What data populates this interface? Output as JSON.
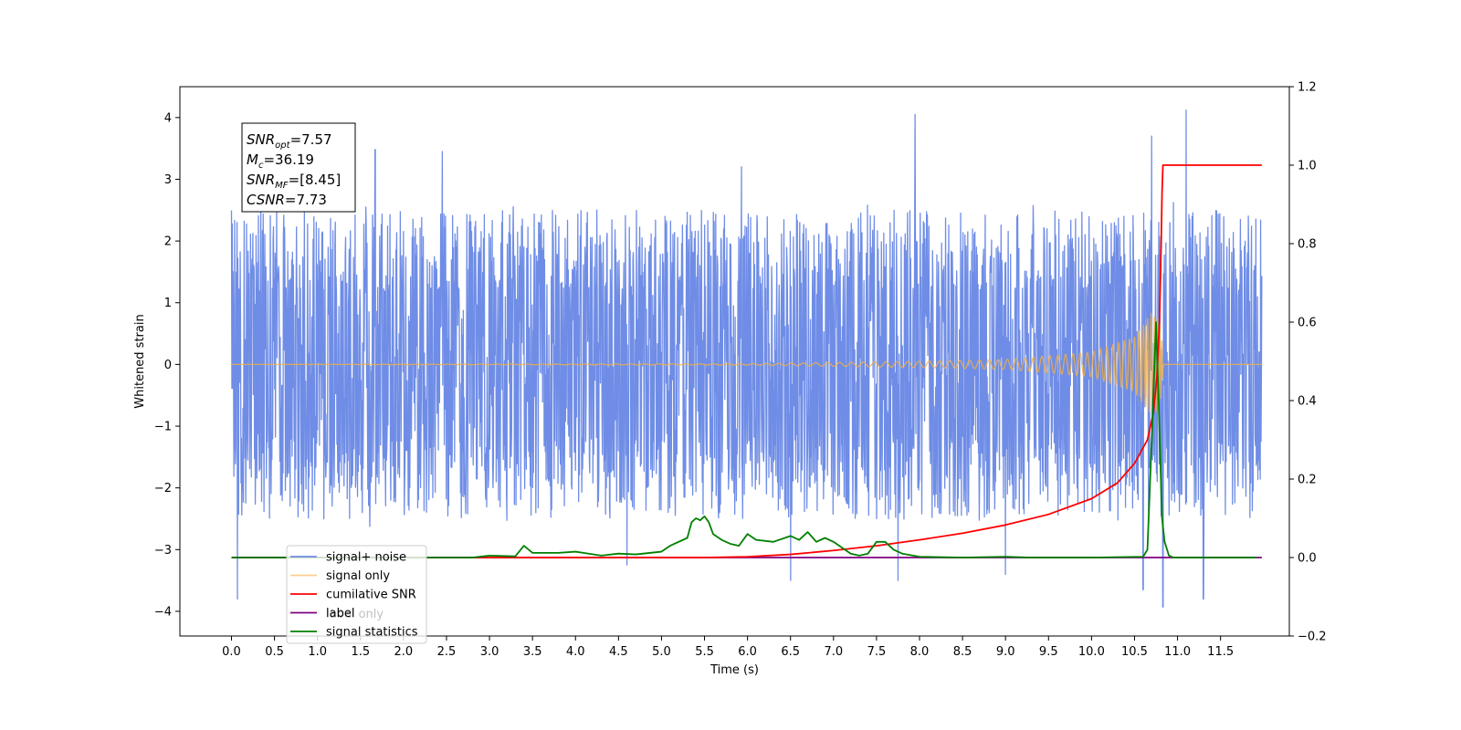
{
  "chart_data": {
    "type": "line",
    "xlabel": "Time (s)",
    "ylabel": "Whitened strain",
    "xlim": [
      -0.6,
      12.3
    ],
    "ylim": [
      -4.4,
      4.5
    ],
    "y2lim": [
      -0.2,
      1.2
    ],
    "x_ticks": [
      0.0,
      0.5,
      1.0,
      1.5,
      2.0,
      2.5,
      3.0,
      3.5,
      4.0,
      4.5,
      5.0,
      5.5,
      6.0,
      6.5,
      7.0,
      7.5,
      8.0,
      8.5,
      9.0,
      9.5,
      10.0,
      10.5,
      11.0,
      11.5
    ],
    "x_tick_labels": [
      "0.0",
      "0.5",
      "1.0",
      "1.5",
      "2.0",
      "2.5",
      "3.0",
      "3.5",
      "4.0",
      "4.5",
      "5.0",
      "5.5",
      "6.0",
      "6.5",
      "7.0",
      "7.5",
      "8.0",
      "8.5",
      "9.0",
      "9.5",
      "10.0",
      "10.5",
      "11.0",
      "11.5"
    ],
    "y_ticks": [
      -4,
      -3,
      -2,
      -1,
      0,
      1,
      2,
      3,
      4
    ],
    "y_tick_labels": [
      "−4",
      "−3",
      "−2",
      "−1",
      "0",
      "1",
      "2",
      "3",
      "4"
    ],
    "y2_ticks": [
      -0.2,
      0.0,
      0.2,
      0.4,
      0.6,
      0.8,
      1.0,
      1.2
    ],
    "y2_tick_labels": [
      "−0.2",
      "0.0",
      "0.2",
      "0.4",
      "0.6",
      "0.8",
      "1.0",
      "1.2"
    ],
    "grid": false,
    "legend_position": "lower-left",
    "colors": {
      "signal_noise": "#6f8de6",
      "signal_only": "#f5b041",
      "cumulative_snr": "#ff0000",
      "label": "#800080",
      "signal_statistics": "#008000"
    },
    "legend": [
      "signal+ noise",
      "signal only",
      "cumilative SNR",
      "label",
      "signal statistics"
    ],
    "hidden_legend_text": "label only",
    "annotation": [
      {
        "base": "SNR",
        "sub": "opt",
        "rest": "=7.57"
      },
      {
        "base": "M",
        "sub": "c",
        "rest": "=36.19"
      },
      {
        "base": "SNR",
        "sub": "MF",
        "rest": "=[8.45]"
      },
      {
        "base": "CSNR",
        "sub": "",
        "rest": "=7.73"
      }
    ],
    "series": [
      {
        "name": "signal+ noise",
        "axis": "left",
        "description": "whitened noise, approximately -2.6 to 2.6 with spikes to about ±4",
        "x_range": [
          0.0,
          11.98
        ],
        "spikes": [
          [
            0.07,
            -3.8
          ],
          [
            1.67,
            3.48
          ],
          [
            2.45,
            3.45
          ],
          [
            4.6,
            -3.25
          ],
          [
            5.93,
            3.2
          ],
          [
            6.5,
            -3.5
          ],
          [
            7.75,
            -3.5
          ],
          [
            7.95,
            4.05
          ],
          [
            9.0,
            -3.4
          ],
          [
            10.6,
            -3.65
          ],
          [
            10.7,
            3.7
          ],
          [
            10.83,
            -3.93
          ],
          [
            11.1,
            4.12
          ],
          [
            11.3,
            -3.8
          ]
        ]
      },
      {
        "name": "signal only",
        "axis": "left",
        "description": "chirp waveform, amplitude increasing until merger near t = 10.8 s",
        "x_range": [
          0.0,
          11.98
        ],
        "envelope": [
          [
            0.0,
            0.0
          ],
          [
            6.0,
            0.01
          ],
          [
            8.0,
            0.05
          ],
          [
            9.0,
            0.08
          ],
          [
            10.0,
            0.2
          ],
          [
            10.5,
            0.45
          ],
          [
            10.7,
            0.85
          ],
          [
            10.8,
            0.7
          ],
          [
            10.84,
            0.0
          ],
          [
            11.98,
            0.0
          ]
        ]
      },
      {
        "name": "cumilative SNR",
        "axis": "right",
        "x": [
          0.0,
          5.5,
          6.0,
          6.5,
          7.0,
          7.5,
          8.0,
          8.5,
          9.0,
          9.5,
          10.0,
          10.3,
          10.5,
          10.65,
          10.72,
          10.76,
          10.79,
          10.81,
          10.82,
          10.83,
          11.98
        ],
        "values": [
          0.0,
          0.0,
          0.002,
          0.008,
          0.018,
          0.03,
          0.045,
          0.062,
          0.083,
          0.11,
          0.15,
          0.19,
          0.24,
          0.3,
          0.37,
          0.46,
          0.6,
          0.8,
          0.93,
          1.0,
          1.0
        ]
      },
      {
        "name": "label",
        "axis": "right",
        "x": [
          0.0,
          11.98
        ],
        "values": [
          0.0,
          0.0
        ]
      },
      {
        "name": "signal statistics",
        "axis": "right",
        "x": [
          0.0,
          2.8,
          3.0,
          3.3,
          3.4,
          3.5,
          3.8,
          4.0,
          4.3,
          4.5,
          4.7,
          5.0,
          5.1,
          5.3,
          5.35,
          5.4,
          5.45,
          5.5,
          5.55,
          5.6,
          5.7,
          5.8,
          5.9,
          6.0,
          6.1,
          6.3,
          6.5,
          6.6,
          6.7,
          6.8,
          6.9,
          7.0,
          7.2,
          7.3,
          7.4,
          7.5,
          7.6,
          7.7,
          7.8,
          8.0,
          8.5,
          9.0,
          9.3,
          10.0,
          10.6,
          10.65,
          10.7,
          10.75,
          10.78,
          10.82,
          10.85,
          10.9,
          10.95,
          11.92
        ],
        "values": [
          0.0,
          0.0,
          0.005,
          0.003,
          0.03,
          0.012,
          0.012,
          0.015,
          0.005,
          0.01,
          0.008,
          0.015,
          0.03,
          0.05,
          0.09,
          0.1,
          0.095,
          0.105,
          0.09,
          0.06,
          0.045,
          0.035,
          0.03,
          0.06,
          0.045,
          0.04,
          0.055,
          0.045,
          0.065,
          0.04,
          0.05,
          0.04,
          0.01,
          0.005,
          0.01,
          0.04,
          0.04,
          0.02,
          0.01,
          0.002,
          0.0,
          0.002,
          0.0,
          0.0,
          0.002,
          0.02,
          0.3,
          0.6,
          0.4,
          0.1,
          0.04,
          0.005,
          0.0,
          0.0
        ]
      }
    ]
  }
}
